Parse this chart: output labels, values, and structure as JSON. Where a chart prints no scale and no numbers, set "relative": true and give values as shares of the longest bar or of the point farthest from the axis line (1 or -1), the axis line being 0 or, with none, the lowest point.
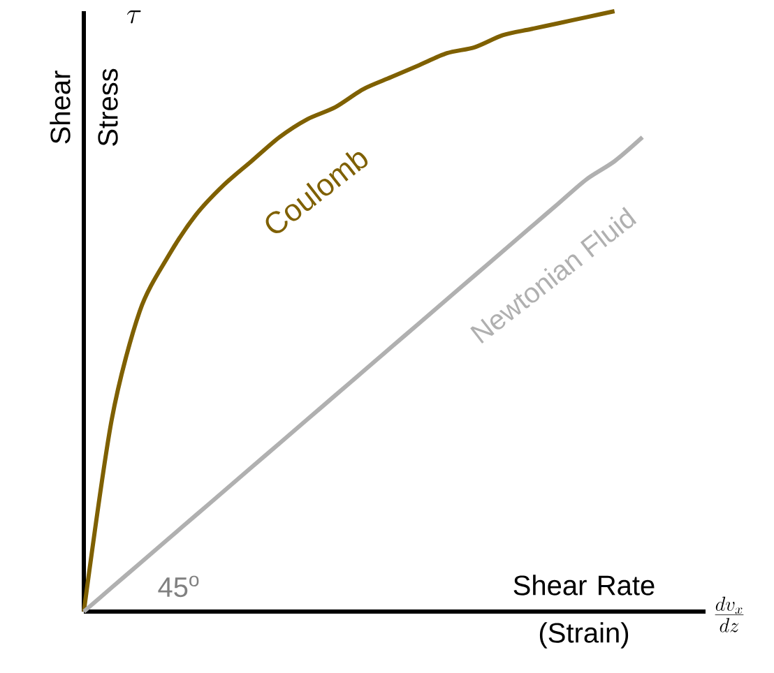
{
  "chart_data": {
    "type": "line",
    "relative": true,
    "xlabel": "Shear Rate (Strain)",
    "ylabel": "Shear Stress",
    "categories": [
      null,
      null,
      null,
      null,
      null,
      null,
      null,
      null,
      null,
      null,
      null,
      null,
      null,
      null,
      null,
      null,
      null,
      null,
      null,
      null,
      null
    ],
    "series": [
      {
        "name": "Coulomb",
        "color": "#7f6000",
        "values": [
          0,
          0.32,
          0.5,
          0.59,
          0.66,
          0.71,
          0.75,
          0.79,
          0.82,
          0.84,
          0.87,
          0.89,
          0.91,
          0.93,
          0.94,
          0.96,
          0.97,
          0.98,
          0.99,
          1.0,
          null
        ]
      },
      {
        "name": "Newtonian Fluid",
        "color": "#b0b0b0",
        "values": [
          0,
          0.04,
          0.08,
          0.12,
          0.16,
          0.2,
          0.24,
          0.28,
          0.32,
          0.36,
          0.4,
          0.44,
          0.48,
          0.52,
          0.56,
          0.6,
          0.64,
          0.68,
          0.72,
          0.75,
          0.79
        ]
      }
    ],
    "annotations": [
      "45$^{o}$",
      "\\tau",
      "\\frac{dv_x}{dz}"
    ]
  }
}
